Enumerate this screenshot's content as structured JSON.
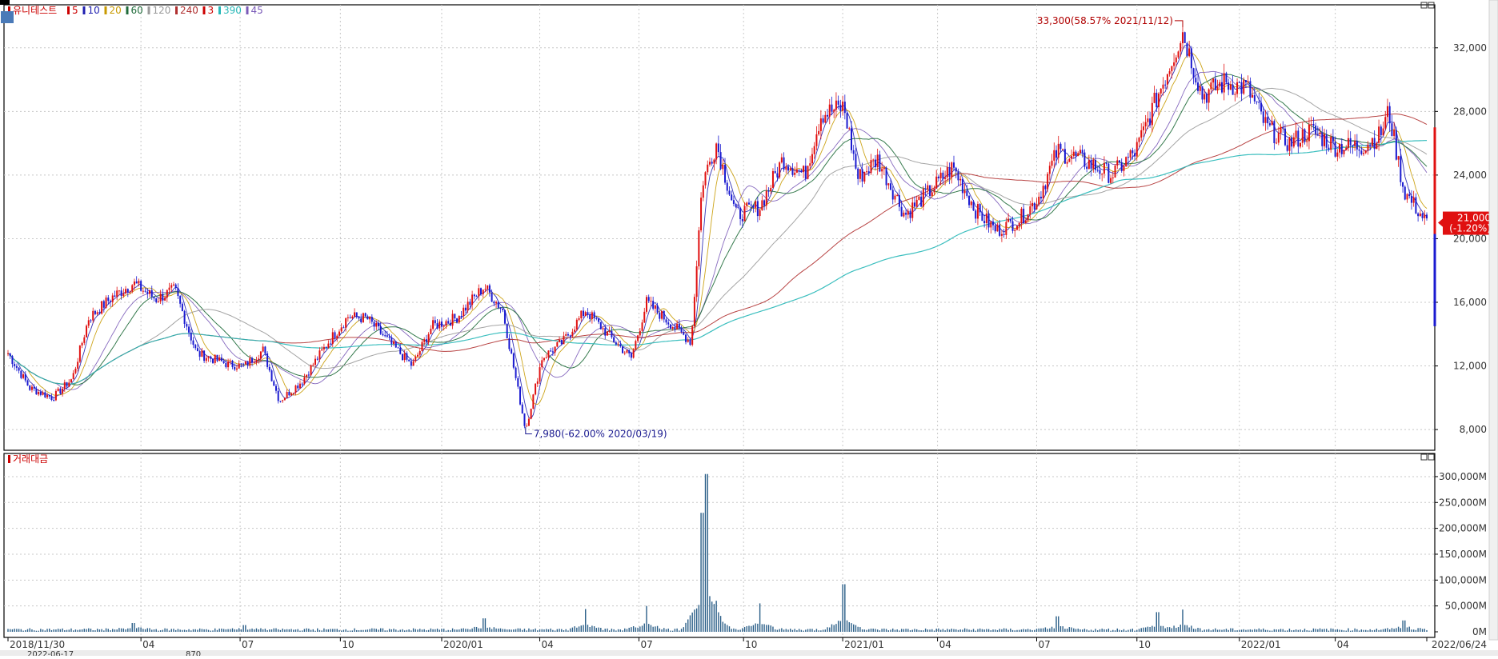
{
  "chart_data": [
    {
      "type": "candlestick",
      "panel": "price",
      "stock_name": "유니테스트",
      "legend": [
        {
          "label": "5",
          "color": "#cc0000"
        },
        {
          "label": "10",
          "color": "#1f1fb0"
        },
        {
          "label": "20",
          "color": "#c89a00"
        },
        {
          "label": "60",
          "color": "#1f6b3a"
        },
        {
          "label": "120",
          "color": "#9a9a9a"
        },
        {
          "label": "240",
          "color": "#b03030"
        },
        {
          "label": "3",
          "color": "#cc0000"
        },
        {
          "label": "390",
          "color": "#28b8b8"
        },
        {
          "label": "45",
          "color": "#7a5ab8"
        }
      ],
      "ylim": [
        7000,
        34000
      ],
      "yticks": [
        8000,
        12000,
        16000,
        20000,
        24000,
        28000,
        32000
      ],
      "ytick_labels": [
        "8,000",
        "12,000",
        "16,000",
        "20,000",
        "24,000",
        "28,000",
        "32,000"
      ],
      "x_range": [
        "2018-11-30",
        "2022-06-24"
      ],
      "x_ticks": [
        {
          "date": "2018-11-30",
          "label": "2018/11/30"
        },
        {
          "date": "2019-04-01",
          "label": "04"
        },
        {
          "date": "2019-07-01",
          "label": "07"
        },
        {
          "date": "2019-10-01",
          "label": "10"
        },
        {
          "date": "2020-01-02",
          "label": "2020/01"
        },
        {
          "date": "2020-04-01",
          "label": "04"
        },
        {
          "date": "2020-07-01",
          "label": "07"
        },
        {
          "date": "2020-10-05",
          "label": "10"
        },
        {
          "date": "2021-01-04",
          "label": "2021/01"
        },
        {
          "date": "2021-04-01",
          "label": "04"
        },
        {
          "date": "2021-07-01",
          "label": "07"
        },
        {
          "date": "2021-10-01",
          "label": "10"
        },
        {
          "date": "2022-01-03",
          "label": "2022/01"
        },
        {
          "date": "2022-04-01",
          "label": "04"
        },
        {
          "date": "2022-06-24",
          "label": "2022/06/24"
        }
      ],
      "price_path": [
        [
          "2018-11-30",
          12800
        ],
        [
          "2018-12-20",
          10600
        ],
        [
          "2019-01-10",
          10000
        ],
        [
          "2019-01-28",
          11200
        ],
        [
          "2019-02-12",
          15000
        ],
        [
          "2019-03-05",
          16300
        ],
        [
          "2019-03-25",
          17200
        ],
        [
          "2019-04-15",
          16200
        ],
        [
          "2019-05-02",
          16800
        ],
        [
          "2019-05-22",
          12800
        ],
        [
          "2019-06-20",
          12100
        ],
        [
          "2019-07-05",
          12000
        ],
        [
          "2019-07-22",
          13000
        ],
        [
          "2019-08-06",
          9800
        ],
        [
          "2019-08-26",
          11000
        ],
        [
          "2019-09-20",
          13500
        ],
        [
          "2019-10-08",
          15100
        ],
        [
          "2019-10-25",
          15000
        ],
        [
          "2019-11-15",
          13500
        ],
        [
          "2019-12-06",
          12000
        ],
        [
          "2019-12-24",
          14500
        ],
        [
          "2020-01-15",
          15000
        ],
        [
          "2020-02-10",
          17000
        ],
        [
          "2020-02-27",
          15500
        ],
        [
          "2020-03-19",
          7980
        ],
        [
          "2020-04-03",
          12500
        ],
        [
          "2020-04-22",
          13500
        ],
        [
          "2020-05-13",
          15500
        ],
        [
          "2020-06-05",
          13800
        ],
        [
          "2020-06-24",
          12500
        ],
        [
          "2020-07-08",
          16000
        ],
        [
          "2020-07-28",
          14800
        ],
        [
          "2020-08-18",
          13500
        ],
        [
          "2020-08-28",
          23500
        ],
        [
          "2020-09-10",
          26000
        ],
        [
          "2020-09-28",
          21500
        ],
        [
          "2020-10-20",
          22000
        ],
        [
          "2020-11-10",
          25000
        ],
        [
          "2020-11-30",
          24000
        ],
        [
          "2020-12-15",
          27800
        ],
        [
          "2021-01-05",
          28300
        ],
        [
          "2021-01-18",
          23800
        ],
        [
          "2021-02-05",
          25000
        ],
        [
          "2021-03-02",
          21500
        ],
        [
          "2021-03-25",
          23000
        ],
        [
          "2021-04-15",
          24500
        ],
        [
          "2021-05-06",
          21800
        ],
        [
          "2021-05-25",
          20500
        ],
        [
          "2021-06-15",
          21200
        ],
        [
          "2021-07-02",
          22500
        ],
        [
          "2021-07-20",
          25500
        ],
        [
          "2021-08-10",
          25000
        ],
        [
          "2021-09-08",
          24000
        ],
        [
          "2021-09-30",
          25500
        ],
        [
          "2021-10-20",
          29000
        ],
        [
          "2021-11-12",
          33000
        ],
        [
          "2021-11-30",
          29000
        ],
        [
          "2021-12-20",
          29800
        ],
        [
          "2022-01-10",
          29500
        ],
        [
          "2022-01-28",
          27000
        ],
        [
          "2022-02-18",
          26000
        ],
        [
          "2022-03-10",
          26800
        ],
        [
          "2022-04-01",
          25800
        ],
        [
          "2022-04-25",
          25800
        ],
        [
          "2022-05-12",
          26500
        ],
        [
          "2022-05-20",
          28000
        ],
        [
          "2022-06-03",
          23000
        ],
        [
          "2022-06-24",
          21000
        ]
      ],
      "annotations": [
        {
          "text": "33,300(58.57% 2021/11/12)",
          "date": "2021-11-12",
          "value": 33300,
          "kind": "high"
        },
        {
          "text": "7,980(-62.00% 2020/03/19)",
          "date": "2020-03-19",
          "value": 7980,
          "kind": "low"
        }
      ],
      "current_price": {
        "price_text": "21,000",
        "change_text": "(-1.20%)",
        "value": 21000
      }
    },
    {
      "type": "bar",
      "panel": "volume",
      "title": "거래대금",
      "ylim": [
        0,
        320000
      ],
      "yticks": [
        0,
        50000,
        100000,
        150000,
        200000,
        250000,
        300000
      ],
      "ytick_labels": [
        "0M",
        "50,000M",
        "100,000M",
        "150,000M",
        "200,000M",
        "250,000M",
        "300,000M"
      ],
      "spikes": [
        [
          "2019-03-25",
          17000
        ],
        [
          "2019-07-05",
          13000
        ],
        [
          "2020-02-10",
          26000
        ],
        [
          "2020-05-13",
          44000
        ],
        [
          "2020-07-08",
          50000
        ],
        [
          "2020-08-28",
          230000
        ],
        [
          "2020-09-01",
          305000
        ],
        [
          "2020-09-10",
          60000
        ],
        [
          "2020-10-20",
          55000
        ],
        [
          "2021-01-05",
          92000
        ],
        [
          "2021-07-20",
          30000
        ],
        [
          "2021-10-20",
          38000
        ],
        [
          "2021-11-12",
          43000
        ],
        [
          "2022-06-03",
          22000
        ]
      ]
    }
  ],
  "ui": {
    "bottom_period_value": "2022-06-17",
    "bottom_count_value": "870"
  }
}
